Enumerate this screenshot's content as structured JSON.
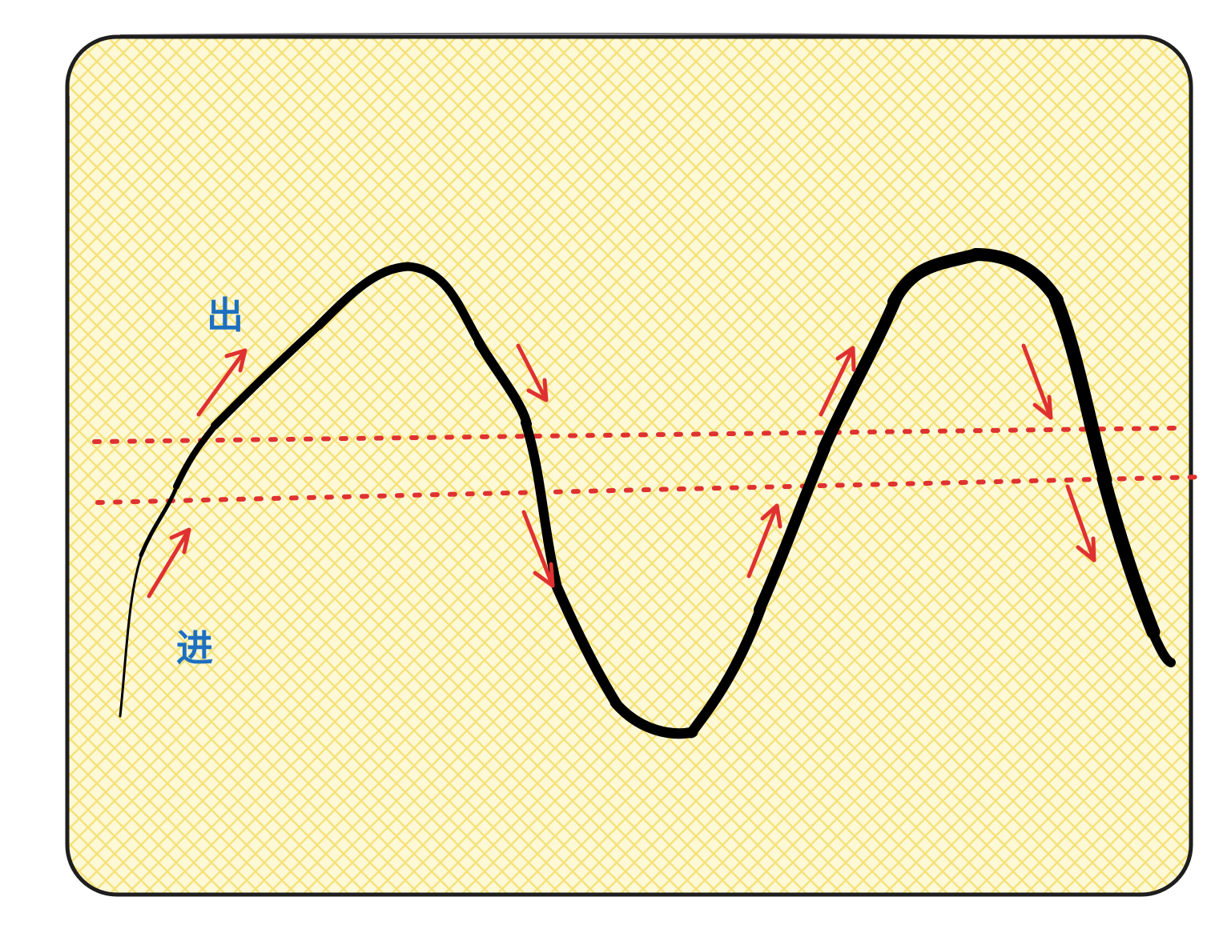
{
  "labels": {
    "out": "出",
    "in": "进"
  },
  "colors": {
    "panel_fill": "#fdf6c8",
    "hatch": "#f5e27a",
    "border": "#1e1e1e",
    "curve": "#000000",
    "threshold": "#e03131",
    "arrow": "#e03131",
    "label": "#1e6fc0"
  },
  "icons": {
    "up_arrow": "arrow-up-right-icon",
    "down_arrow": "arrow-down-right-icon"
  }
}
